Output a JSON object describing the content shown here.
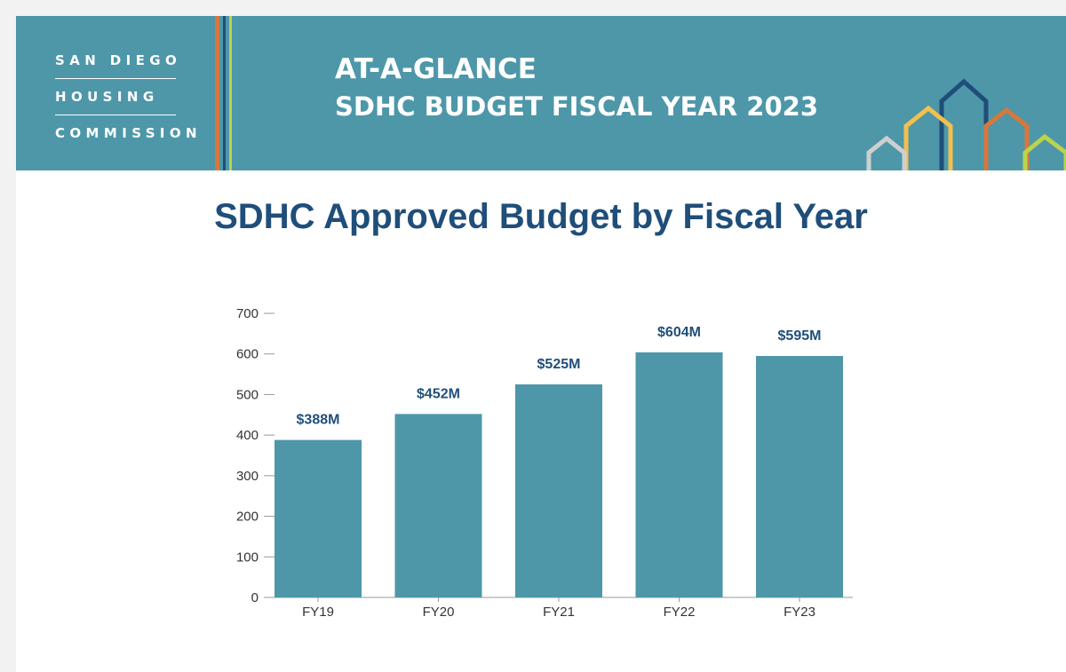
{
  "banner": {
    "logo_lines": [
      "SAN DIEGO",
      "HOUSING",
      "COMMISSION"
    ],
    "title_line1": "AT-A-GLANCE",
    "title_line2": "SDHC BUDGET FISCAL YEAR 2023"
  },
  "colors": {
    "banner_bg": "#4d97a9",
    "bar_fill": "#4d97a9",
    "title_text": "#1f4e7a",
    "stripe_orange": "#d8773c",
    "stripe_yellow": "#f2c04e",
    "stripe_green": "#b9d44d",
    "stripe_navy": "#1f4e7a"
  },
  "icons": [
    "house-outline-gray-icon",
    "house-outline-yellow-icon",
    "house-outline-navy-icon",
    "house-outline-orange-icon",
    "house-outline-green-icon"
  ],
  "chart_data": {
    "type": "bar",
    "title": "SDHC Approved Budget by Fiscal Year",
    "categories": [
      "FY19",
      "FY20",
      "FY21",
      "FY22",
      "FY23"
    ],
    "values": [
      388,
      452,
      525,
      604,
      595
    ],
    "data_labels": [
      "$388M",
      "$452M",
      "$525M",
      "$604M",
      "$595M"
    ],
    "yticks": [
      0,
      100,
      200,
      300,
      400,
      500,
      600,
      700
    ],
    "ylim": [
      0,
      700
    ],
    "xlabel": "",
    "ylabel": "",
    "grid": false,
    "legend": "none"
  }
}
